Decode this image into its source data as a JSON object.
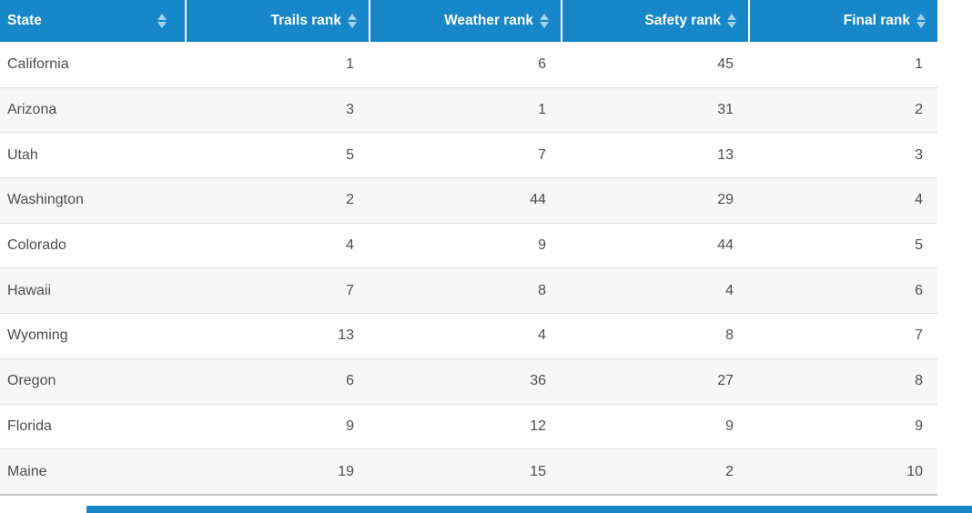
{
  "chart_data": {
    "type": "table",
    "title": "",
    "columns": [
      "State",
      "Trails rank",
      "Weather rank",
      "Safety rank",
      "Final rank"
    ],
    "rows": [
      [
        "California",
        1,
        6,
        45,
        1
      ],
      [
        "Arizona",
        3,
        1,
        31,
        2
      ],
      [
        "Utah",
        5,
        7,
        13,
        3
      ],
      [
        "Washington",
        2,
        44,
        29,
        4
      ],
      [
        "Colorado",
        4,
        9,
        44,
        5
      ],
      [
        "Hawaii",
        7,
        8,
        4,
        6
      ],
      [
        "Wyoming",
        13,
        4,
        8,
        7
      ],
      [
        "Oregon",
        6,
        36,
        27,
        8
      ],
      [
        "Florida",
        9,
        12,
        9,
        9
      ],
      [
        "Maine",
        19,
        15,
        2,
        10
      ]
    ],
    "layout": {
      "sortable_columns": true,
      "striped_rows": true,
      "header_text_color": "#ffffff",
      "numeric_columns_align": "right"
    }
  },
  "colors": {
    "header_bg": "#1787c9",
    "sort_icon": "#a2d2ef",
    "row_alt_bg": "#f7f7f7",
    "row_border": "#dddddd",
    "table_bottom_border": "#c7c7c7",
    "cell_text": "#4d4d4d"
  },
  "icons": {
    "sort": "sort-arrows-icon (up+down triangles)"
  }
}
